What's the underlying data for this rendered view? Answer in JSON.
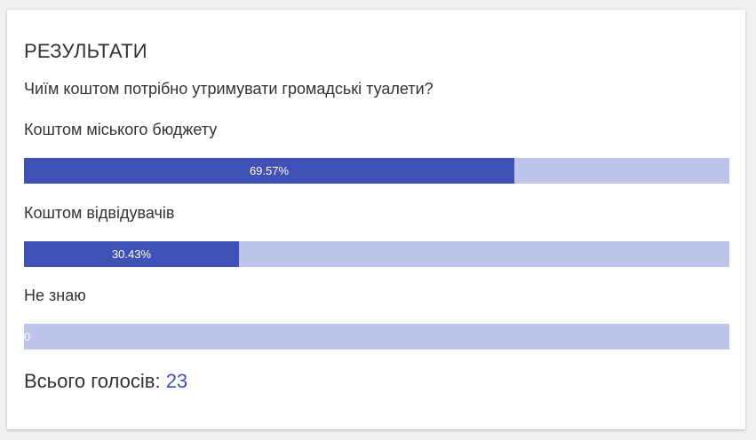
{
  "results": {
    "heading": "РЕЗУЛЬТАТИ",
    "question": "Чиїм коштом потрібно утримувати громадські туалети?",
    "options": [
      {
        "label": "Коштом міського бюджету",
        "percent_text": "69.57%",
        "fraction": 0.6957
      },
      {
        "label": "Коштом відвідувачів",
        "percent_text": "30.43%",
        "fraction": 0.3043
      },
      {
        "label": "Не знаю",
        "percent_text": "0",
        "fraction": 0
      }
    ],
    "total_label": "Всього голосів:",
    "total_count": "23"
  },
  "colors": {
    "bar_fill": "#3f51b5",
    "bar_track": "#bfc4ea",
    "accent": "#3f51b5"
  }
}
